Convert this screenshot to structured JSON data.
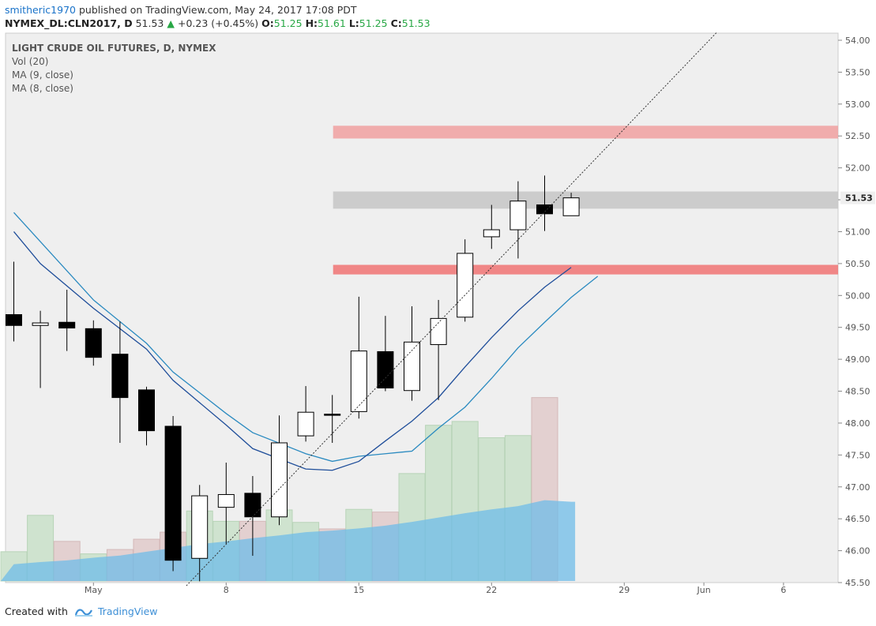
{
  "header": {
    "line1": {
      "user": "smitheric1970",
      "published": "published on TradingView.com, May 24, 2017 17:08 PDT"
    },
    "line2": {
      "symbol": "NYMEX_DL:CLN2017, D",
      "last": "51.53",
      "arrow": "▲",
      "change": "+0.23 (+0.45%)",
      "o_label": "O:",
      "o": "51.25",
      "h_label": "H:",
      "h": "51.61",
      "l_label": "L:",
      "l": "51.25",
      "c_label": "C:",
      "c": "51.53"
    }
  },
  "legend": {
    "title": "LIGHT CRUDE OIL FUTURES, D, NYMEX",
    "items": [
      "Vol (20)",
      "MA (9, close)",
      "MA (8, close)"
    ]
  },
  "footer": {
    "created_with": "Created with",
    "brand": "TradingView"
  },
  "colors": {
    "up_body": "#ffffff",
    "down_body": "#000000",
    "candle_border": "#000000",
    "ma9": "#2a8ac0",
    "ma8": "#1f4e9a",
    "vol_up": "#cfe3cf",
    "vol_down": "#e3d0d0",
    "vol_ma": "#6fbce8",
    "zone_top": "#f0a4a4",
    "zone_mid": "#c6c6c6",
    "zone_low": "#f07a7a",
    "bg": "#efefef",
    "trendline": "#333333",
    "price_tag": "#efefef"
  },
  "chart_data": {
    "type": "candlestick",
    "title": "LIGHT CRUDE OIL FUTURES, D, NYMEX",
    "ylim": [
      45.5,
      54.0
    ],
    "y_ticks": [
      "54.00",
      "53.50",
      "53.00",
      "52.50",
      "52.00",
      "51.50",
      "51.00",
      "50.50",
      "50.00",
      "49.50",
      "49.00",
      "48.50",
      "48.00",
      "47.50",
      "47.00",
      "46.50",
      "46.00",
      "45.50"
    ],
    "last_price": "51.53",
    "x_ticks": [
      {
        "label": "May",
        "index": 3
      },
      {
        "label": "8",
        "index": 8
      },
      {
        "label": "15",
        "index": 13
      },
      {
        "label": "22",
        "index": 18
      },
      {
        "label": "29",
        "index": 23
      },
      {
        "label": "Jun",
        "index": 26
      },
      {
        "label": "6",
        "index": 29
      }
    ],
    "candles": [
      {
        "o": 49.7,
        "h": 50.53,
        "l": 49.28,
        "c": 49.53
      },
      {
        "o": 49.53,
        "h": 49.76,
        "l": 48.55,
        "c": 49.57
      },
      {
        "o": 49.58,
        "h": 50.09,
        "l": 49.13,
        "c": 49.49
      },
      {
        "o": 49.48,
        "h": 49.61,
        "l": 48.9,
        "c": 49.03
      },
      {
        "o": 49.08,
        "h": 49.59,
        "l": 47.69,
        "c": 48.4
      },
      {
        "o": 48.52,
        "h": 48.57,
        "l": 47.65,
        "c": 47.88
      },
      {
        "o": 47.95,
        "h": 48.11,
        "l": 45.68,
        "c": 45.85
      },
      {
        "o": 45.88,
        "h": 47.03,
        "l": 45.52,
        "c": 46.86
      },
      {
        "o": 46.68,
        "h": 47.38,
        "l": 46.11,
        "c": 46.88
      },
      {
        "o": 46.9,
        "h": 47.17,
        "l": 45.92,
        "c": 46.53
      },
      {
        "o": 46.53,
        "h": 48.12,
        "l": 46.4,
        "c": 47.69
      },
      {
        "o": 47.8,
        "h": 48.58,
        "l": 47.71,
        "c": 48.17
      },
      {
        "o": 48.14,
        "h": 48.44,
        "l": 47.69,
        "c": 48.13
      },
      {
        "o": 48.18,
        "h": 49.98,
        "l": 48.07,
        "c": 49.13
      },
      {
        "o": 49.12,
        "h": 49.68,
        "l": 48.5,
        "c": 48.55
      },
      {
        "o": 48.51,
        "h": 49.83,
        "l": 48.35,
        "c": 49.27
      },
      {
        "o": 49.23,
        "h": 49.93,
        "l": 48.36,
        "c": 49.64
      },
      {
        "o": 49.66,
        "h": 50.88,
        "l": 49.59,
        "c": 50.66
      },
      {
        "o": 50.92,
        "h": 51.42,
        "l": 50.73,
        "c": 51.03
      },
      {
        "o": 51.03,
        "h": 51.79,
        "l": 50.58,
        "c": 51.48
      },
      {
        "o": 51.42,
        "h": 51.88,
        "l": 51.01,
        "c": 51.28
      },
      {
        "o": 51.25,
        "h": 51.61,
        "l": 51.25,
        "c": 51.53
      }
    ],
    "volume": {
      "values": [
        54,
        121,
        73,
        50,
        58,
        77,
        90,
        129,
        110,
        110,
        131,
        108,
        96,
        132,
        127,
        198,
        287,
        294,
        264,
        268,
        338,
        0
      ],
      "direction": [
        "up",
        "up",
        "down",
        "up",
        "down",
        "down",
        "down",
        "up",
        "up",
        "down",
        "up",
        "up",
        "down",
        "up",
        "down",
        "up",
        "up",
        "up",
        "up",
        "up",
        "down",
        "up"
      ],
      "ma20": [
        31,
        35,
        38,
        43,
        47,
        54,
        61,
        68,
        73,
        79,
        84,
        90,
        93,
        97,
        102,
        109,
        117,
        125,
        132,
        138,
        149,
        146
      ],
      "ylim": [
        0,
        400
      ]
    },
    "ma9": {
      "name": "MA (9, close)",
      "points": [
        [
          0,
          51.3
        ],
        [
          3,
          49.93
        ],
        [
          5,
          49.25
        ],
        [
          6,
          48.8
        ],
        [
          8,
          48.15
        ],
        [
          9,
          47.85
        ],
        [
          11,
          47.52
        ],
        [
          12,
          47.4
        ],
        [
          13,
          47.48
        ],
        [
          14,
          47.52
        ],
        [
          15,
          47.56
        ],
        [
          16,
          47.92
        ],
        [
          17,
          48.25
        ],
        [
          18,
          48.7
        ],
        [
          19,
          49.18
        ],
        [
          20,
          49.58
        ],
        [
          21,
          49.97
        ],
        [
          22,
          50.3
        ]
      ]
    },
    "ma8": {
      "name": "MA (8, close)",
      "points": [
        [
          0,
          51.0
        ],
        [
          1,
          50.5
        ],
        [
          3,
          49.8
        ],
        [
          5,
          49.16
        ],
        [
          6,
          48.67
        ],
        [
          8,
          47.97
        ],
        [
          9,
          47.6
        ],
        [
          11,
          47.28
        ],
        [
          12,
          47.26
        ],
        [
          13,
          47.4
        ],
        [
          14,
          47.72
        ],
        [
          15,
          48.03
        ],
        [
          16,
          48.4
        ],
        [
          17,
          48.88
        ],
        [
          18,
          49.34
        ],
        [
          19,
          49.76
        ],
        [
          20,
          50.13
        ],
        [
          21,
          50.44
        ]
      ]
    },
    "zones": [
      {
        "name": "resistance-zone",
        "y1": 52.46,
        "y2": 52.66,
        "from_index": 12
      },
      {
        "name": "current-zone",
        "y1": 51.36,
        "y2": 51.63,
        "from_index": 12
      },
      {
        "name": "support-zone",
        "y1": 50.33,
        "y2": 50.48,
        "from_index": 12
      }
    ],
    "trendline": {
      "start": [
        6.5,
        45.45
      ],
      "end": [
        26.5,
        54.13
      ]
    }
  }
}
